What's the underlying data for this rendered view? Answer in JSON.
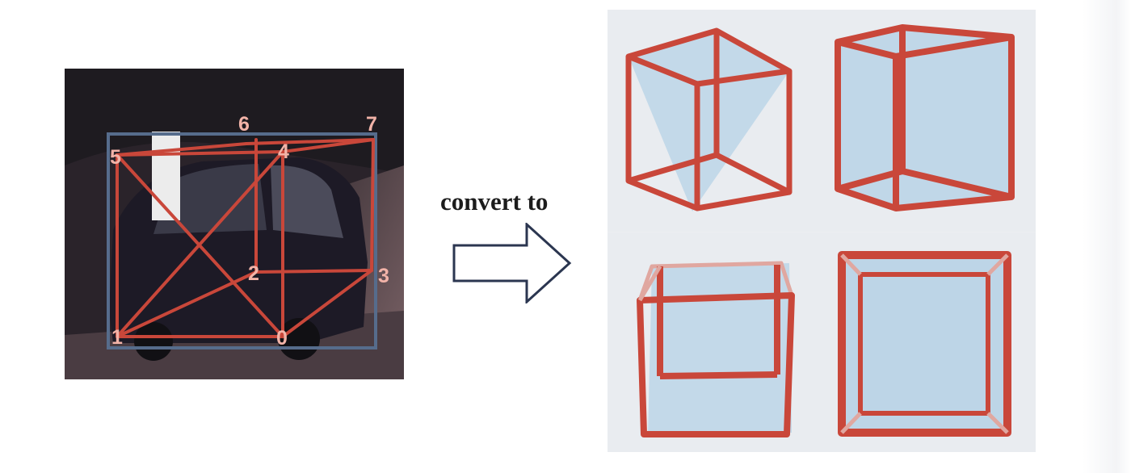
{
  "left_photo": {
    "keypoints": [
      {
        "id": "0",
        "label": "0"
      },
      {
        "id": "1",
        "label": "1"
      },
      {
        "id": "2",
        "label": "2"
      },
      {
        "id": "3",
        "label": "3"
      },
      {
        "id": "4",
        "label": "4"
      },
      {
        "id": "5",
        "label": "5"
      },
      {
        "id": "6",
        "label": "6"
      },
      {
        "id": "7",
        "label": "7"
      }
    ],
    "box_color": "#c9473a",
    "frame_color": "#566c8c"
  },
  "caption": {
    "text": "convert to"
  },
  "arrow": {
    "direction": "right",
    "stroke_color": "#2b3650"
  },
  "render_panel": {
    "cube_views": [
      "perspective-top-left",
      "perspective-right",
      "perspective-front-high",
      "front-orthographic"
    ],
    "edge_color": "#c9473a",
    "face_color": "#b8d3e6"
  }
}
